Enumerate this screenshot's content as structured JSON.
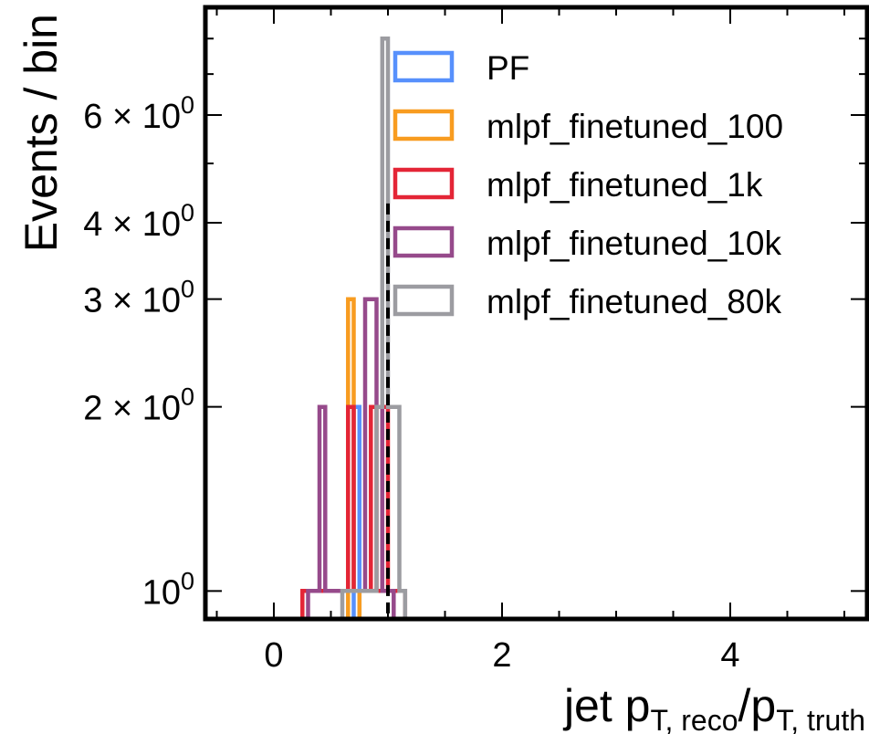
{
  "chart_data": {
    "type": "histogram-step",
    "xlabel": {
      "main": "jet p",
      "sub1": "T, reco",
      "slash": "/p",
      "sub2": "T, truth"
    },
    "ylabel": "Events / bin",
    "yscale": "log",
    "xlim": [
      -0.6,
      5.2
    ],
    "ylim": [
      0.9,
      9.0
    ],
    "xticks": [
      0,
      2,
      4
    ],
    "xtick_labels": [
      "0",
      "2",
      "4"
    ],
    "yticks": [
      1,
      2,
      3,
      4,
      6
    ],
    "ytick_labels": [
      {
        "base": "10",
        "exp": "0",
        "prefix": ""
      },
      {
        "base": "10",
        "exp": "0",
        "prefix": "2 × "
      },
      {
        "base": "10",
        "exp": "0",
        "prefix": "3 × "
      },
      {
        "base": "10",
        "exp": "0",
        "prefix": "4 × "
      },
      {
        "base": "10",
        "exp": "0",
        "prefix": "6 × "
      }
    ],
    "reference_line_x": 1.0,
    "legend_position": "upper-right",
    "series": [
      {
        "name": "PF",
        "color": "#5790fc",
        "edges": [
          0.7,
          0.75
        ],
        "counts": [
          2
        ]
      },
      {
        "name": "mlpf_finetuned_100",
        "color": "#f89c20",
        "edges": [
          0.65,
          0.7,
          0.75
        ],
        "counts": [
          3,
          1
        ]
      },
      {
        "name": "mlpf_finetuned_1k",
        "color": "#e42536",
        "edges": [
          0.25,
          0.3,
          0.35,
          0.4,
          0.45,
          0.5,
          0.55,
          0.6,
          0.65,
          0.7,
          0.75,
          0.8,
          0.85,
          0.9,
          0.95,
          1.0,
          1.05,
          1.1,
          1.15
        ],
        "counts": [
          1,
          1,
          1,
          1,
          1,
          1,
          1,
          1,
          2,
          1,
          1,
          1,
          2,
          1,
          2,
          1,
          1,
          1
        ]
      },
      {
        "name": "mlpf_finetuned_10k",
        "color": "#964a8b",
        "edges": [
          0.3,
          0.35,
          0.4,
          0.45,
          0.5,
          0.55,
          0.6,
          0.65,
          0.7,
          0.75,
          0.8,
          0.85,
          0.9,
          0.95,
          1.0,
          1.05
        ],
        "counts": [
          1,
          1,
          2,
          1,
          1,
          1,
          1,
          1,
          1,
          1,
          3,
          3,
          2,
          1,
          1
        ]
      },
      {
        "name": "mlpf_finetuned_80k",
        "color": "#9c9ca1",
        "edges": [
          0.6,
          0.65,
          0.7,
          0.75,
          0.8,
          0.85,
          0.9,
          0.95,
          1.0,
          1.05,
          1.1,
          1.15
        ],
        "counts": [
          1,
          1,
          1,
          1,
          1,
          1,
          2,
          8,
          2,
          2,
          1
        ]
      }
    ]
  }
}
